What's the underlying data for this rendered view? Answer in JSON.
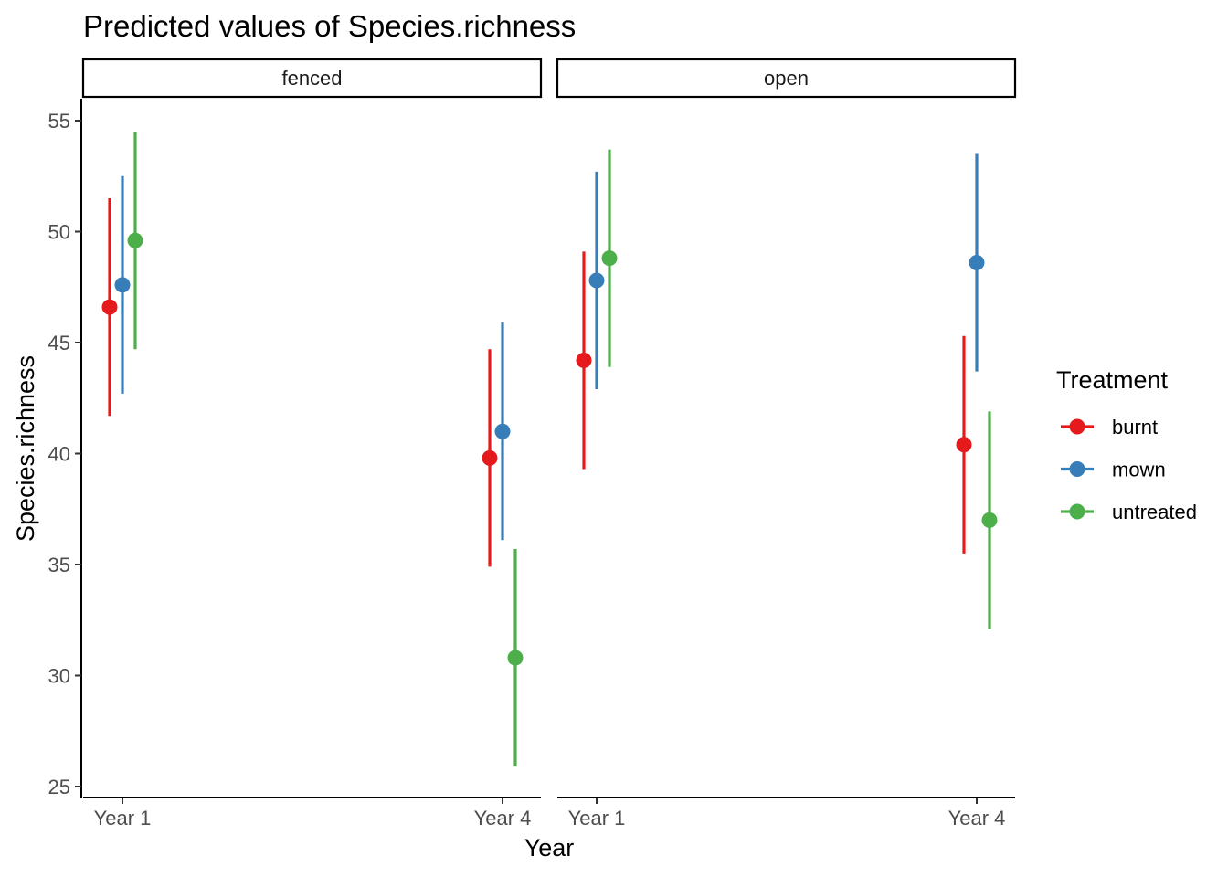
{
  "chart_data": {
    "type": "scatter",
    "title": "Predicted values of Species.richness",
    "xlabel": "Year",
    "ylabel": "Species.richness",
    "categories": [
      "Year 1",
      "Year 4"
    ],
    "facets": [
      "fenced",
      "open"
    ],
    "ylim": [
      24.5,
      56
    ],
    "yticks": [
      25,
      30,
      35,
      40,
      45,
      50,
      55
    ],
    "grid": false,
    "legend": {
      "title": "Treatment",
      "placement": "right"
    },
    "series": [
      {
        "name": "burnt",
        "color": "#E41A1C",
        "points": [
          {
            "facet": "fenced",
            "x": "Year 1",
            "y": 46.6,
            "low": 41.7,
            "high": 51.5
          },
          {
            "facet": "fenced",
            "x": "Year 4",
            "y": 39.8,
            "low": 34.9,
            "high": 44.7
          },
          {
            "facet": "open",
            "x": "Year 1",
            "y": 44.2,
            "low": 39.3,
            "high": 49.1
          },
          {
            "facet": "open",
            "x": "Year 4",
            "y": 40.4,
            "low": 35.5,
            "high": 45.3
          }
        ]
      },
      {
        "name": "mown",
        "color": "#377EB8",
        "points": [
          {
            "facet": "fenced",
            "x": "Year 1",
            "y": 47.6,
            "low": 42.7,
            "high": 52.5
          },
          {
            "facet": "fenced",
            "x": "Year 4",
            "y": 41.0,
            "low": 36.1,
            "high": 45.9
          },
          {
            "facet": "open",
            "x": "Year 1",
            "y": 47.8,
            "low": 42.9,
            "high": 52.7
          },
          {
            "facet": "open",
            "x": "Year 4",
            "y": 48.6,
            "low": 43.7,
            "high": 53.5
          }
        ]
      },
      {
        "name": "untreated",
        "color": "#4DAF4A",
        "points": [
          {
            "facet": "fenced",
            "x": "Year 1",
            "y": 49.6,
            "low": 44.7,
            "high": 54.5
          },
          {
            "facet": "fenced",
            "x": "Year 4",
            "y": 30.8,
            "low": 25.9,
            "high": 35.7
          },
          {
            "facet": "open",
            "x": "Year 1",
            "y": 48.8,
            "low": 43.9,
            "high": 53.7
          },
          {
            "facet": "open",
            "x": "Year 4",
            "y": 37.0,
            "low": 32.1,
            "high": 41.9
          }
        ]
      }
    ]
  }
}
